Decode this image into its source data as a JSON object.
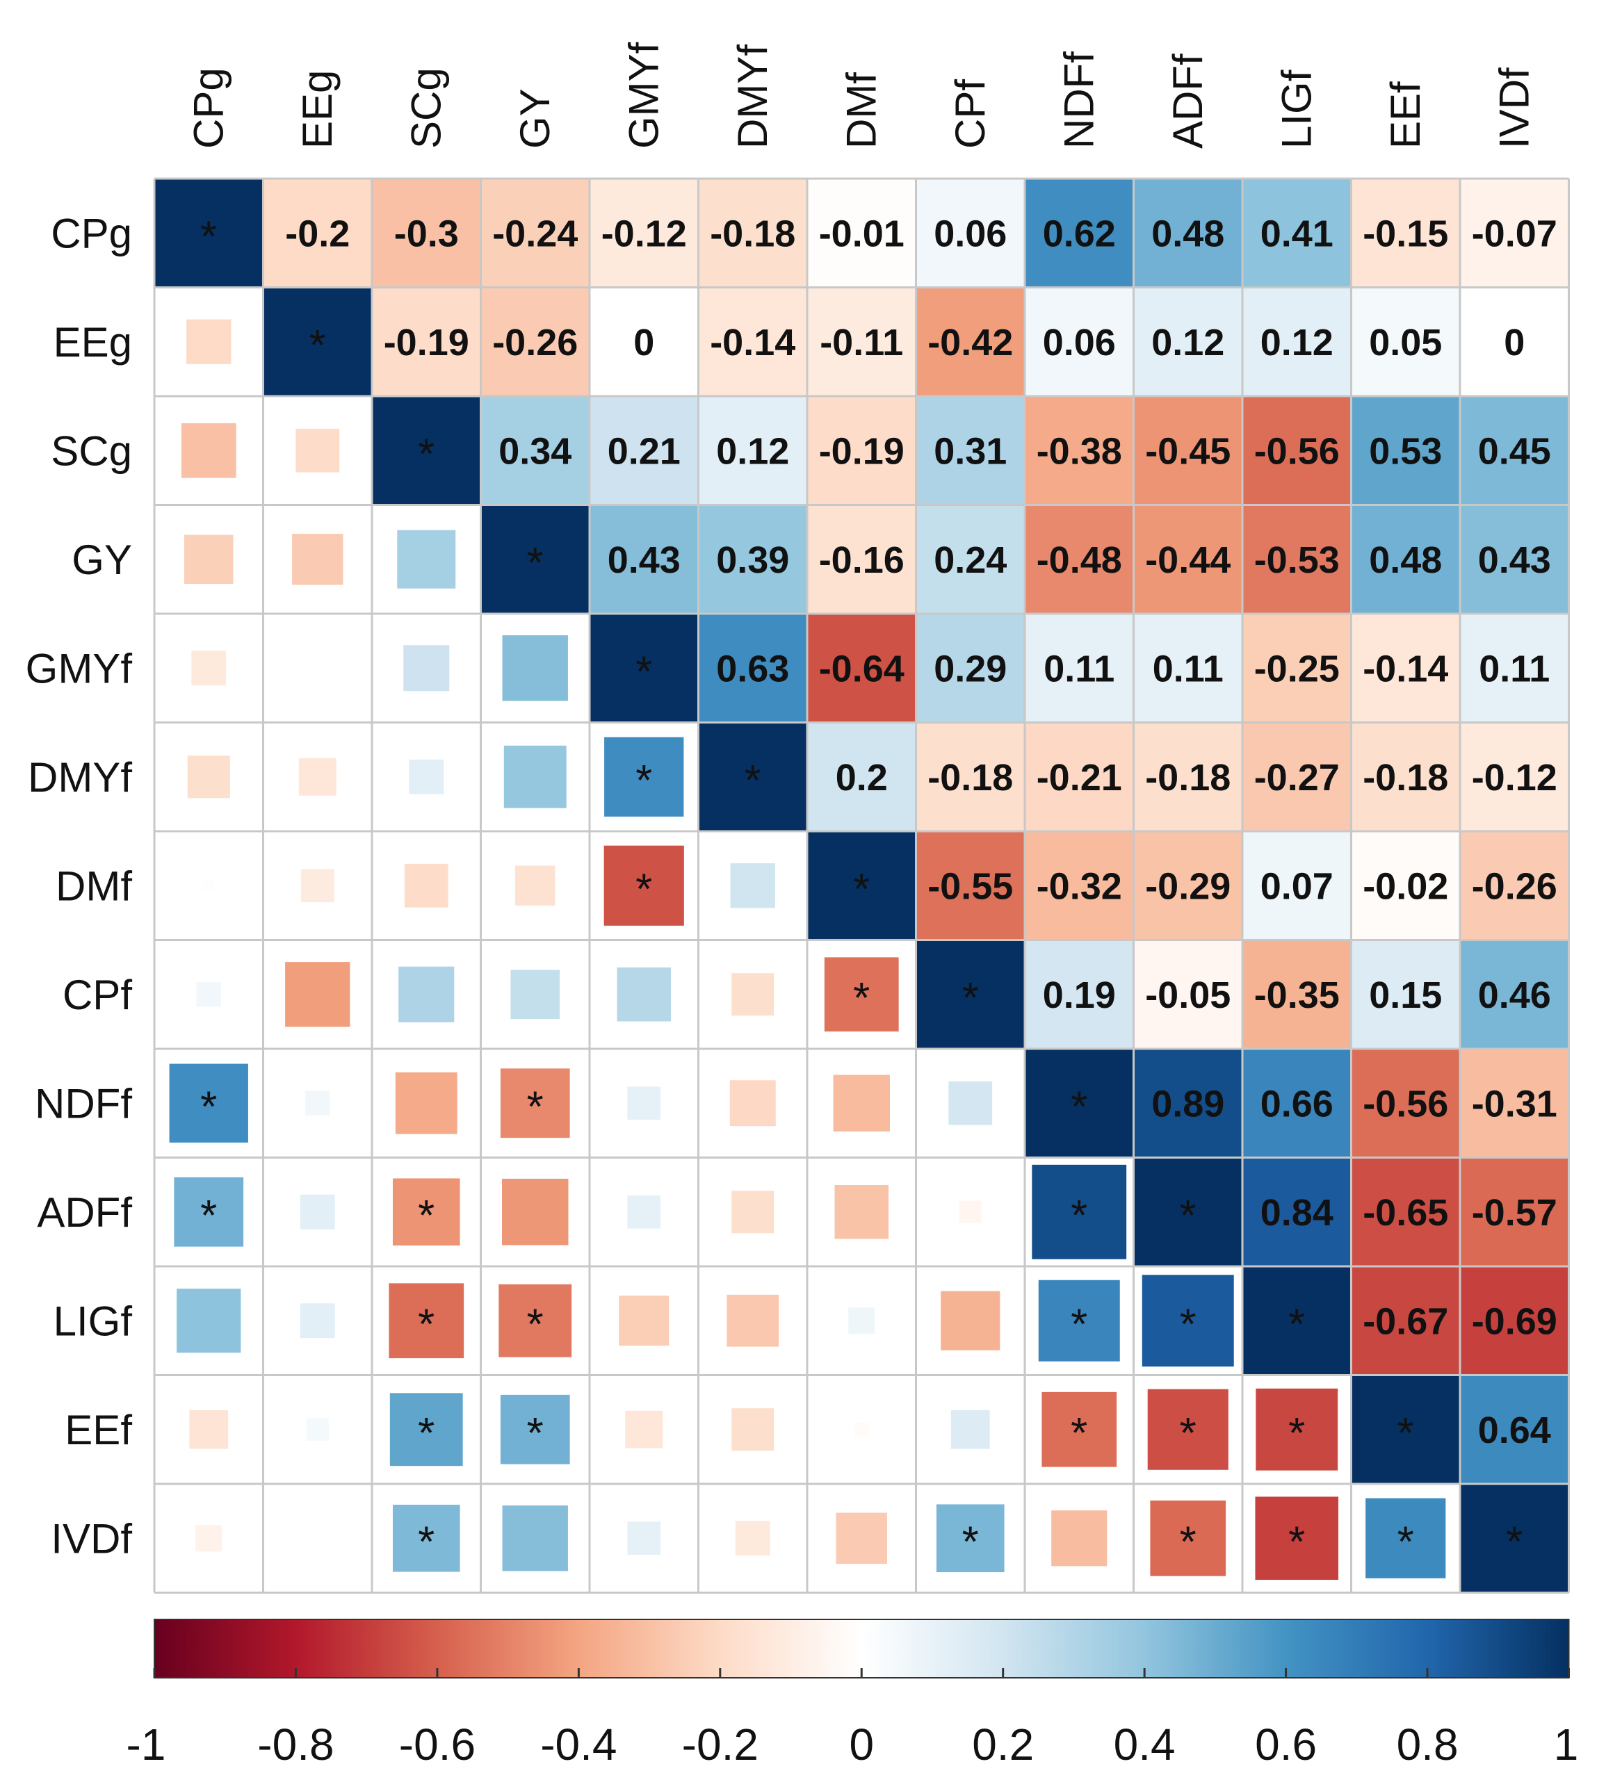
{
  "chart_data": {
    "type": "heatmap",
    "title": "",
    "variables": [
      "CPg",
      "EEg",
      "SCg",
      "GY",
      "GMYf",
      "DMYf",
      "DMf",
      "CPf",
      "NDFf",
      "ADFf",
      "LIGf",
      "EEf",
      "IVDf"
    ],
    "matrix": [
      [
        1,
        -0.2,
        -0.3,
        -0.24,
        -0.12,
        -0.18,
        -0.01,
        0.06,
        0.62,
        0.48,
        0.41,
        -0.15,
        -0.07
      ],
      [
        -0.2,
        1,
        -0.19,
        -0.26,
        0,
        -0.14,
        -0.11,
        -0.42,
        0.06,
        0.12,
        0.12,
        0.05,
        0
      ],
      [
        -0.3,
        -0.19,
        1,
        0.34,
        0.21,
        0.12,
        -0.19,
        0.31,
        -0.38,
        -0.45,
        -0.56,
        0.53,
        0.45
      ],
      [
        -0.24,
        -0.26,
        0.34,
        1,
        0.43,
        0.39,
        -0.16,
        0.24,
        -0.48,
        -0.44,
        -0.53,
        0.48,
        0.43
      ],
      [
        -0.12,
        0,
        0.21,
        0.43,
        1,
        0.63,
        -0.64,
        0.29,
        0.11,
        0.11,
        -0.25,
        -0.14,
        0.11
      ],
      [
        -0.18,
        -0.14,
        0.12,
        0.39,
        0.63,
        1,
        0.2,
        -0.18,
        -0.21,
        -0.18,
        -0.27,
        -0.18,
        -0.12
      ],
      [
        -0.01,
        -0.11,
        -0.19,
        -0.16,
        -0.64,
        0.2,
        1,
        -0.55,
        -0.32,
        -0.29,
        0.07,
        -0.02,
        -0.26
      ],
      [
        0.06,
        -0.42,
        0.31,
        0.24,
        0.29,
        -0.18,
        -0.55,
        1,
        0.19,
        -0.05,
        -0.35,
        0.15,
        0.46
      ],
      [
        0.62,
        0.06,
        -0.38,
        -0.48,
        0.11,
        -0.21,
        -0.32,
        0.19,
        1,
        0.89,
        0.66,
        -0.56,
        -0.31
      ],
      [
        0.48,
        0.12,
        -0.45,
        -0.44,
        0.11,
        -0.18,
        -0.29,
        -0.05,
        0.89,
        1,
        0.84,
        -0.65,
        -0.57
      ],
      [
        0.41,
        0.12,
        -0.56,
        -0.53,
        -0.25,
        -0.27,
        0.07,
        -0.35,
        0.66,
        0.84,
        1,
        -0.67,
        -0.69
      ],
      [
        -0.15,
        0.05,
        0.53,
        0.48,
        -0.14,
        -0.18,
        -0.02,
        0.15,
        -0.56,
        -0.65,
        -0.67,
        1,
        0.64
      ],
      [
        -0.07,
        0,
        0.45,
        0.43,
        0.11,
        -0.12,
        -0.26,
        0.46,
        -0.31,
        -0.57,
        -0.69,
        0.64,
        1
      ]
    ],
    "significant": [
      [
        0,
        8
      ],
      [
        0,
        9
      ],
      [
        2,
        9
      ],
      [
        2,
        10
      ],
      [
        2,
        11
      ],
      [
        2,
        12
      ],
      [
        3,
        8
      ],
      [
        3,
        10
      ],
      [
        3,
        11
      ],
      [
        4,
        5
      ],
      [
        4,
        6
      ],
      [
        6,
        7
      ],
      [
        7,
        12
      ],
      [
        8,
        9
      ],
      [
        8,
        10
      ],
      [
        8,
        11
      ],
      [
        9,
        10
      ],
      [
        9,
        11
      ],
      [
        9,
        12
      ],
      [
        10,
        11
      ],
      [
        10,
        12
      ],
      [
        11,
        12
      ]
    ],
    "upper_triangle": "numeric correlation values",
    "lower_triangle": "squares sized by |r|, asterisk marks significant correlations",
    "diagonal_marker": "*",
    "significance_marker": "*",
    "colorbar": {
      "range": [
        -1,
        1
      ],
      "ticks": [
        -1,
        -0.8,
        -0.6,
        -0.4,
        -0.2,
        0,
        0.2,
        0.4,
        0.6,
        0.8,
        1
      ],
      "tick_labels": [
        "-1",
        "-0.8",
        "-0.6",
        "-0.4",
        "-0.2",
        "0",
        "0.2",
        "0.4",
        "0.6",
        "0.8",
        "1"
      ],
      "colors": [
        "#67001f",
        "#b2182b",
        "#d6604d",
        "#f4a582",
        "#fddbc7",
        "#ffffff",
        "#d1e5f0",
        "#92c5de",
        "#4393c3",
        "#2166ac",
        "#053061"
      ]
    }
  }
}
